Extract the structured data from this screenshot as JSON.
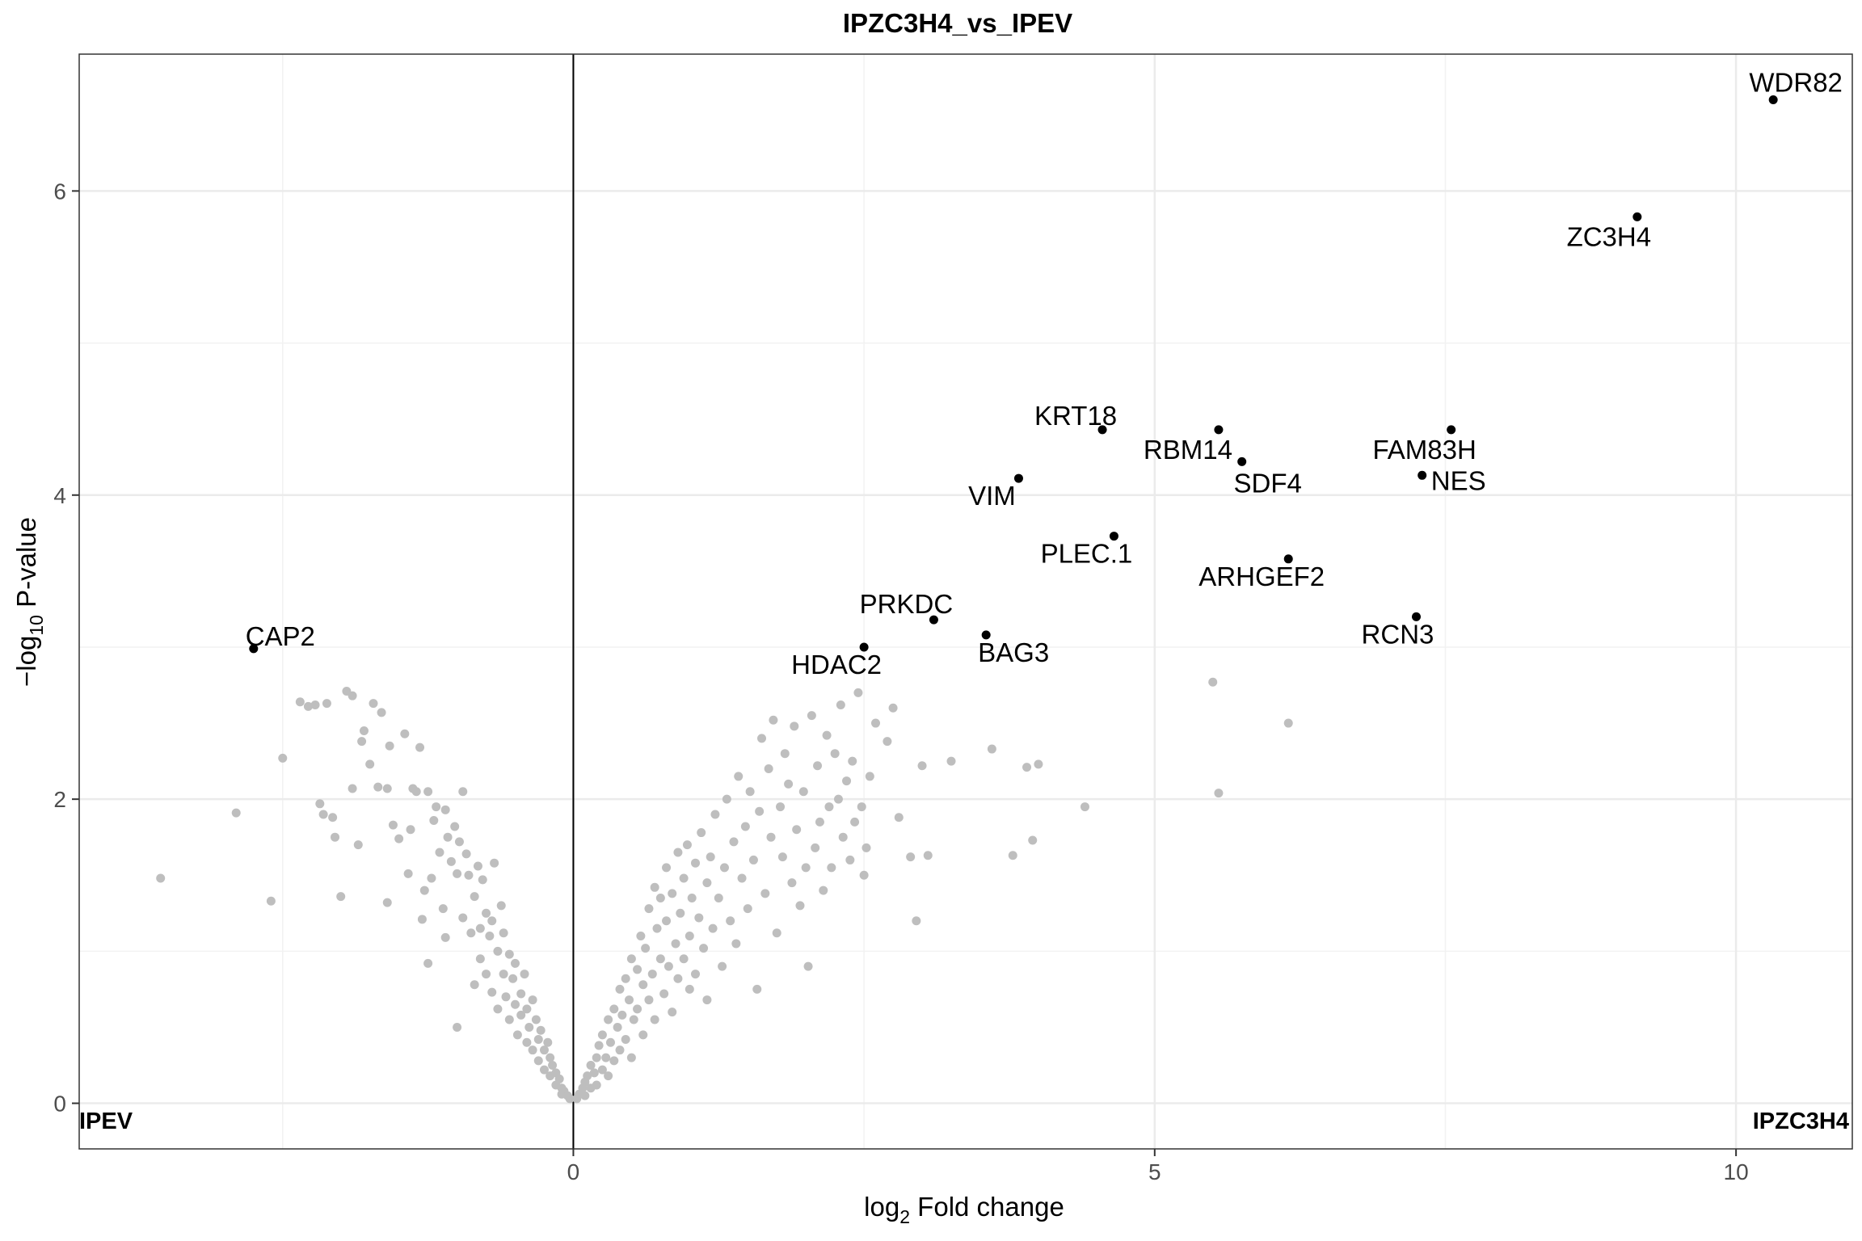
{
  "chart_data": {
    "type": "scatter",
    "title": "IPZC3H4_vs_IPEV",
    "xlabel_prefix": "log",
    "xlabel_sub": "2",
    "xlabel_suffix": " Fold change",
    "ylabel_prefix": "−log",
    "ylabel_sub": "10",
    "ylabel_suffix": " P-value",
    "xlim": [
      -4.25,
      11.0
    ],
    "ylim": [
      -0.3,
      6.9
    ],
    "x_ticks": [
      0,
      5,
      10
    ],
    "x_tick_labels": [
      "0",
      "5",
      "10"
    ],
    "y_ticks": [
      0,
      2,
      4,
      6
    ],
    "y_tick_labels": [
      "0",
      "2",
      "4",
      "6"
    ],
    "x_minor_ticks": [
      -2.5,
      2.5,
      7.5
    ],
    "y_minor_ticks": [
      1,
      3,
      5
    ],
    "grid": true,
    "vline_x": 0,
    "corner_labels": {
      "left": "IPEV",
      "right": "IPZC3H4"
    },
    "colors": {
      "highlight": "#000000",
      "background_points": "#bebebe",
      "grid": "#ebebeb"
    },
    "highlighted": [
      {
        "label": "WDR82",
        "x": 10.32,
        "y": 6.6
      },
      {
        "label": "ZC3H4",
        "x": 9.15,
        "y": 5.83
      },
      {
        "label": "KRT18",
        "x": 4.55,
        "y": 4.43
      },
      {
        "label": "RBM14",
        "x": 5.55,
        "y": 4.43
      },
      {
        "label": "FAM83H",
        "x": 7.55,
        "y": 4.43
      },
      {
        "label": "SDF4",
        "x": 5.75,
        "y": 4.22
      },
      {
        "label": "NES",
        "x": 7.3,
        "y": 4.13
      },
      {
        "label": "VIM",
        "x": 3.83,
        "y": 4.11
      },
      {
        "label": "PLEC.1",
        "x": 4.65,
        "y": 3.73
      },
      {
        "label": "ARHGEF2",
        "x": 6.15,
        "y": 3.58
      },
      {
        "label": "RCN3",
        "x": 7.25,
        "y": 3.2
      },
      {
        "label": "PRKDC",
        "x": 3.1,
        "y": 3.18
      },
      {
        "label": "BAG3",
        "x": 3.55,
        "y": 3.08
      },
      {
        "label": "HDAC2",
        "x": 2.5,
        "y": 3.0
      },
      {
        "label": "CAP2",
        "x": -2.75,
        "y": 2.99
      }
    ],
    "background_points": [
      [
        -3.55,
        1.48
      ],
      [
        -2.9,
        1.91
      ],
      [
        -2.6,
        1.33
      ],
      [
        -2.5,
        2.27
      ],
      [
        -2.35,
        2.64
      ],
      [
        -2.28,
        2.61
      ],
      [
        -2.22,
        2.62
      ],
      [
        -2.18,
        1.97
      ],
      [
        -2.12,
        2.63
      ],
      [
        -2.15,
        1.9
      ],
      [
        -2.07,
        1.88
      ],
      [
        -2.05,
        1.75
      ],
      [
        -2.0,
        1.36
      ],
      [
        -1.95,
        2.71
      ],
      [
        -1.9,
        2.68
      ],
      [
        -1.9,
        2.07
      ],
      [
        -1.85,
        1.7
      ],
      [
        -1.82,
        2.38
      ],
      [
        -1.8,
        2.45
      ],
      [
        -1.75,
        2.23
      ],
      [
        -1.72,
        2.63
      ],
      [
        -1.68,
        2.08
      ],
      [
        -1.65,
        2.57
      ],
      [
        -1.6,
        2.07
      ],
      [
        -1.6,
        1.32
      ],
      [
        -1.58,
        2.35
      ],
      [
        -1.55,
        1.83
      ],
      [
        -1.5,
        1.74
      ],
      [
        -1.45,
        2.43
      ],
      [
        -1.42,
        1.51
      ],
      [
        -1.4,
        1.8
      ],
      [
        -1.38,
        2.07
      ],
      [
        -1.35,
        2.05
      ],
      [
        -1.32,
        2.34
      ],
      [
        -1.3,
        1.21
      ],
      [
        -1.28,
        1.4
      ],
      [
        -1.25,
        0.92
      ],
      [
        -1.25,
        2.05
      ],
      [
        -1.22,
        1.48
      ],
      [
        -1.2,
        1.86
      ],
      [
        -1.18,
        1.95
      ],
      [
        -1.15,
        1.65
      ],
      [
        -1.12,
        1.28
      ],
      [
        -1.1,
        1.93
      ],
      [
        -1.1,
        1.09
      ],
      [
        -1.08,
        1.75
      ],
      [
        -1.05,
        1.59
      ],
      [
        -1.02,
        1.82
      ],
      [
        -1.0,
        1.51
      ],
      [
        -1.0,
        0.5
      ],
      [
        -0.98,
        1.72
      ],
      [
        -0.95,
        2.05
      ],
      [
        -0.95,
        1.22
      ],
      [
        -0.92,
        1.64
      ],
      [
        -0.9,
        1.5
      ],
      [
        -0.88,
        1.12
      ],
      [
        -0.85,
        0.78
      ],
      [
        -0.85,
        1.36
      ],
      [
        -0.82,
        1.56
      ],
      [
        -0.8,
        1.15
      ],
      [
        -0.8,
        0.95
      ],
      [
        -0.78,
        1.47
      ],
      [
        -0.75,
        1.25
      ],
      [
        -0.75,
        0.85
      ],
      [
        -0.72,
        1.1
      ],
      [
        -0.7,
        0.73
      ],
      [
        -0.7,
        1.2
      ],
      [
        -0.68,
        1.58
      ],
      [
        -0.65,
        1.0
      ],
      [
        -0.65,
        0.62
      ],
      [
        -0.62,
        1.3
      ],
      [
        -0.6,
        0.85
      ],
      [
        -0.6,
        1.12
      ],
      [
        -0.58,
        0.7
      ],
      [
        -0.55,
        0.98
      ],
      [
        -0.55,
        0.55
      ],
      [
        -0.52,
        0.82
      ],
      [
        -0.5,
        0.65
      ],
      [
        -0.5,
        0.92
      ],
      [
        -0.48,
        0.45
      ],
      [
        -0.45,
        0.72
      ],
      [
        -0.45,
        0.58
      ],
      [
        -0.42,
        0.85
      ],
      [
        -0.4,
        0.4
      ],
      [
        -0.4,
        0.62
      ],
      [
        -0.38,
        0.5
      ],
      [
        -0.35,
        0.68
      ],
      [
        -0.35,
        0.35
      ],
      [
        -0.32,
        0.55
      ],
      [
        -0.3,
        0.42
      ],
      [
        -0.3,
        0.28
      ],
      [
        -0.28,
        0.48
      ],
      [
        -0.25,
        0.35
      ],
      [
        -0.25,
        0.22
      ],
      [
        -0.22,
        0.4
      ],
      [
        -0.2,
        0.3
      ],
      [
        -0.2,
        0.18
      ],
      [
        -0.18,
        0.25
      ],
      [
        -0.15,
        0.2
      ],
      [
        -0.15,
        0.12
      ],
      [
        -0.12,
        0.16
      ],
      [
        -0.1,
        0.1
      ],
      [
        -0.1,
        0.06
      ],
      [
        -0.08,
        0.08
      ],
      [
        -0.05,
        0.05
      ],
      [
        -0.03,
        0.03
      ],
      [
        0.03,
        0.03
      ],
      [
        0.05,
        0.06
      ],
      [
        0.08,
        0.1
      ],
      [
        0.1,
        0.05
      ],
      [
        0.1,
        0.14
      ],
      [
        0.12,
        0.18
      ],
      [
        0.15,
        0.1
      ],
      [
        0.15,
        0.25
      ],
      [
        0.18,
        0.2
      ],
      [
        0.2,
        0.3
      ],
      [
        0.2,
        0.12
      ],
      [
        0.22,
        0.38
      ],
      [
        0.25,
        0.22
      ],
      [
        0.25,
        0.45
      ],
      [
        0.28,
        0.3
      ],
      [
        0.3,
        0.55
      ],
      [
        0.3,
        0.18
      ],
      [
        0.32,
        0.4
      ],
      [
        0.35,
        0.62
      ],
      [
        0.35,
        0.28
      ],
      [
        0.38,
        0.5
      ],
      [
        0.4,
        0.75
      ],
      [
        0.4,
        0.35
      ],
      [
        0.42,
        0.58
      ],
      [
        0.45,
        0.82
      ],
      [
        0.45,
        0.42
      ],
      [
        0.48,
        0.68
      ],
      [
        0.5,
        0.95
      ],
      [
        0.5,
        0.3
      ],
      [
        0.52,
        0.55
      ],
      [
        0.55,
        0.88
      ],
      [
        0.55,
        0.62
      ],
      [
        0.58,
        1.1
      ],
      [
        0.6,
        0.45
      ],
      [
        0.6,
        0.78
      ],
      [
        0.62,
        1.02
      ],
      [
        0.65,
        0.68
      ],
      [
        0.65,
        1.28
      ],
      [
        0.68,
        0.85
      ],
      [
        0.7,
        1.42
      ],
      [
        0.7,
        0.55
      ],
      [
        0.72,
        1.15
      ],
      [
        0.75,
        0.95
      ],
      [
        0.75,
        1.35
      ],
      [
        0.78,
        0.72
      ],
      [
        0.8,
        1.2
      ],
      [
        0.8,
        1.55
      ],
      [
        0.82,
        0.9
      ],
      [
        0.85,
        1.38
      ],
      [
        0.85,
        0.6
      ],
      [
        0.88,
        1.05
      ],
      [
        0.9,
        1.65
      ],
      [
        0.9,
        0.82
      ],
      [
        0.92,
        1.25
      ],
      [
        0.95,
        1.48
      ],
      [
        0.95,
        0.95
      ],
      [
        0.98,
        1.7
      ],
      [
        1.0,
        1.1
      ],
      [
        1.0,
        0.75
      ],
      [
        1.02,
        1.35
      ],
      [
        1.05,
        1.58
      ],
      [
        1.05,
        0.85
      ],
      [
        1.08,
        1.22
      ],
      [
        1.1,
        1.78
      ],
      [
        1.12,
        1.02
      ],
      [
        1.15,
        1.45
      ],
      [
        1.15,
        0.68
      ],
      [
        1.18,
        1.62
      ],
      [
        1.2,
        1.15
      ],
      [
        1.22,
        1.9
      ],
      [
        1.25,
        1.35
      ],
      [
        1.28,
        0.9
      ],
      [
        1.3,
        1.55
      ],
      [
        1.32,
        2.0
      ],
      [
        1.35,
        1.2
      ],
      [
        1.38,
        1.72
      ],
      [
        1.4,
        1.05
      ],
      [
        1.42,
        2.15
      ],
      [
        1.45,
        1.48
      ],
      [
        1.48,
        1.82
      ],
      [
        1.5,
        1.28
      ],
      [
        1.52,
        2.05
      ],
      [
        1.55,
        1.6
      ],
      [
        1.58,
        0.75
      ],
      [
        1.6,
        1.92
      ],
      [
        1.62,
        2.4
      ],
      [
        1.65,
        1.38
      ],
      [
        1.68,
        2.2
      ],
      [
        1.7,
        1.75
      ],
      [
        1.72,
        2.52
      ],
      [
        1.75,
        1.12
      ],
      [
        1.78,
        1.95
      ],
      [
        1.8,
        1.62
      ],
      [
        1.82,
        2.3
      ],
      [
        1.85,
        2.1
      ],
      [
        1.88,
        1.45
      ],
      [
        1.9,
        2.48
      ],
      [
        1.92,
        1.8
      ],
      [
        1.95,
        1.3
      ],
      [
        1.98,
        2.05
      ],
      [
        2.0,
        1.55
      ],
      [
        2.02,
        0.9
      ],
      [
        2.05,
        2.55
      ],
      [
        2.08,
        1.68
      ],
      [
        2.1,
        2.22
      ],
      [
        2.12,
        1.85
      ],
      [
        2.15,
        1.4
      ],
      [
        2.18,
        2.42
      ],
      [
        2.2,
        1.95
      ],
      [
        2.22,
        1.55
      ],
      [
        2.25,
        2.3
      ],
      [
        2.28,
        2.0
      ],
      [
        2.3,
        2.62
      ],
      [
        2.32,
        1.75
      ],
      [
        2.35,
        2.12
      ],
      [
        2.38,
        1.6
      ],
      [
        2.4,
        2.25
      ],
      [
        2.42,
        1.85
      ],
      [
        2.45,
        2.7
      ],
      [
        2.48,
        1.95
      ],
      [
        2.5,
        1.5
      ],
      [
        2.52,
        1.68
      ],
      [
        2.55,
        2.15
      ],
      [
        2.6,
        2.5
      ],
      [
        2.7,
        2.38
      ],
      [
        2.75,
        2.6
      ],
      [
        2.8,
        1.88
      ],
      [
        2.9,
        1.62
      ],
      [
        2.95,
        1.2
      ],
      [
        3.05,
        1.63
      ],
      [
        3.0,
        2.22
      ],
      [
        3.25,
        2.25
      ],
      [
        3.6,
        2.33
      ],
      [
        3.9,
        2.21
      ],
      [
        3.95,
        1.73
      ],
      [
        4.0,
        2.23
      ],
      [
        3.78,
        1.63
      ],
      [
        4.4,
        1.95
      ],
      [
        5.5,
        2.77
      ],
      [
        5.55,
        2.04
      ],
      [
        6.15,
        2.5
      ]
    ]
  }
}
